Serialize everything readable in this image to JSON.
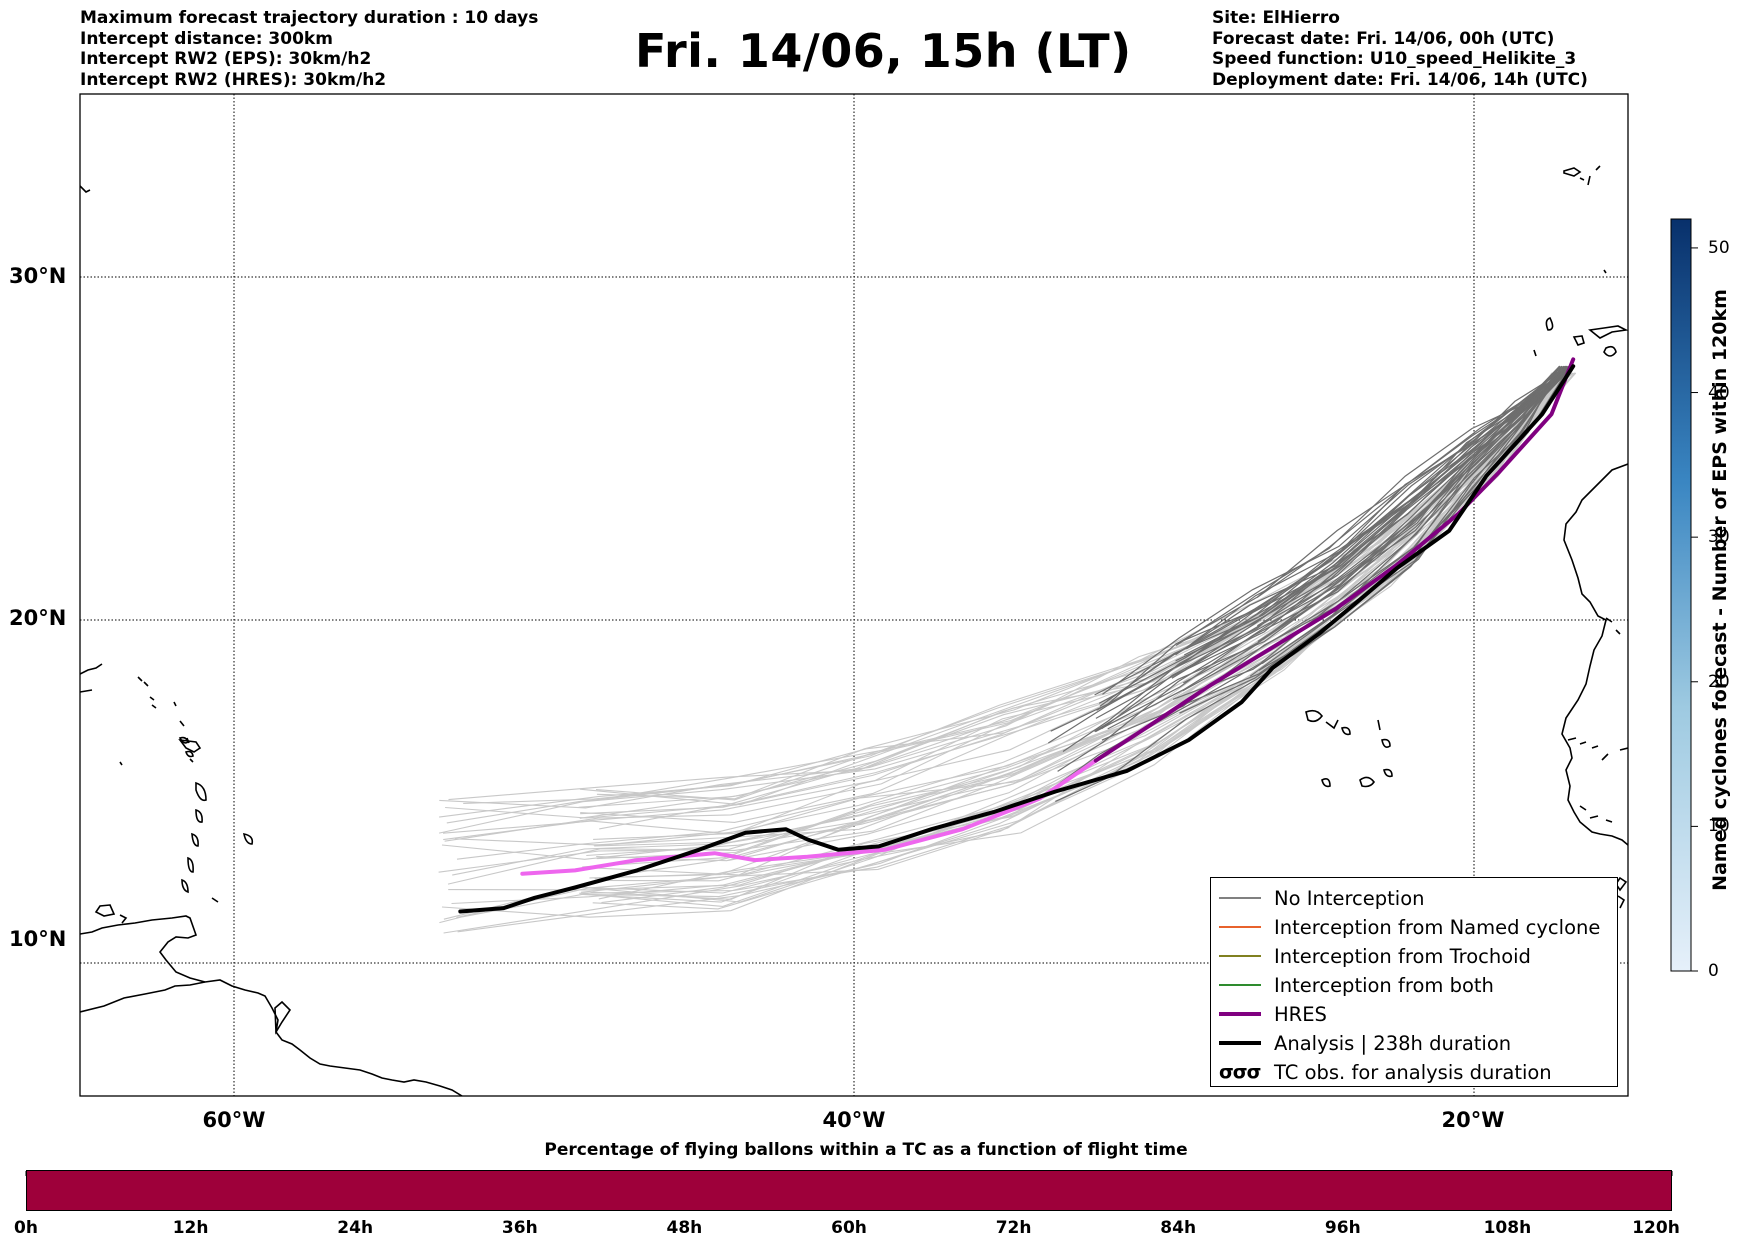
{
  "header": {
    "left_lines": [
      "Maximum forecast trajectory duration : 10 days",
      "Intercept distance: 300km",
      "Intercept RW2 (EPS):  30km/h2",
      "Intercept RW2 (HRES): 30km/h2"
    ],
    "title": "Fri. 14/06, 15h (LT)",
    "right_lines": [
      "Site: ElHierro",
      "Forecast date: Fri. 14/06, 00h (UTC)",
      "Speed function: U10_speed_Helikite_3",
      "Deployment date: Fri. 14/06, 14h (UTC)"
    ]
  },
  "map": {
    "lon_range": [
      -65,
      15
    ],
    "lat_range": [
      5.5,
      34.8
    ],
    "lat_labels": [
      "30°N",
      "20°N",
      "10°N"
    ],
    "lat_values": [
      30,
      20,
      10
    ],
    "lon_labels": [
      "60°W",
      "40°W",
      "20°W"
    ],
    "lon_values": [
      -60,
      -40,
      -20
    ],
    "grid_style": "dotted",
    "hres_track": [
      [
        -50.7,
        12.6
      ],
      [
        -49,
        12.7
      ],
      [
        -47,
        13.0
      ],
      [
        -44.5,
        13.2
      ],
      [
        -43.2,
        13.0
      ],
      [
        -41.5,
        13.1
      ],
      [
        -39,
        13.3
      ],
      [
        -36.5,
        13.9
      ],
      [
        -34,
        14.8
      ],
      [
        -32.2,
        15.9
      ],
      [
        -30.5,
        16.9
      ],
      [
        -28.5,
        18.1
      ],
      [
        -26.5,
        19.2
      ],
      [
        -24.5,
        20.3
      ],
      [
        -22.5,
        21.6
      ],
      [
        -20.5,
        23.1
      ],
      [
        -19.2,
        24.3
      ],
      [
        -17.5,
        26.0
      ],
      [
        -16.8,
        27.6
      ]
    ],
    "hres_highlight_until_lon": -31.8,
    "analysis_track": [
      [
        -52.7,
        11.5
      ],
      [
        -51.3,
        11.6
      ],
      [
        -50.3,
        11.9
      ],
      [
        -49,
        12.2
      ],
      [
        -47,
        12.7
      ],
      [
        -45,
        13.3
      ],
      [
        -43.5,
        13.8
      ],
      [
        -42.2,
        13.9
      ],
      [
        -41.5,
        13.6
      ],
      [
        -40.5,
        13.3
      ],
      [
        -39.2,
        13.4
      ],
      [
        -37.5,
        13.9
      ],
      [
        -35.5,
        14.4
      ],
      [
        -33.5,
        15.0
      ],
      [
        -31.2,
        15.6
      ],
      [
        -29.2,
        16.5
      ],
      [
        -27.5,
        17.6
      ],
      [
        -26.5,
        18.6
      ],
      [
        -25,
        19.6
      ],
      [
        -23.8,
        20.5
      ],
      [
        -22.5,
        21.5
      ],
      [
        -20.8,
        22.6
      ],
      [
        -19.6,
        24.2
      ],
      [
        -17.8,
        26.0
      ],
      [
        -16.8,
        27.4
      ]
    ],
    "ensemble_colors": {
      "early": "#c8c8c8",
      "late": "#6e6e6e",
      "hres": "#800080",
      "hres_light": "#ee66ee",
      "analysis": "#000000"
    }
  },
  "legend": {
    "items": [
      {
        "label": "No Interception",
        "color": "#808080",
        "style": "thin"
      },
      {
        "label": "Interception from Named cyclone",
        "color": "#e8622c",
        "style": "thin"
      },
      {
        "label": "Interception from Trochoid",
        "color": "#808020",
        "style": "thin"
      },
      {
        "label": "Interception from both",
        "color": "#2e8b2e",
        "style": "thin"
      },
      {
        "label": "HRES",
        "color": "#800080",
        "style": "thick"
      },
      {
        "label": "Analysis | 238h duration",
        "color": "#000000",
        "style": "thick"
      },
      {
        "label": "TC obs. for analysis duration",
        "color": "#000000",
        "style": "symbol",
        "symbol": "σσσ"
      }
    ]
  },
  "colorbar": {
    "title": "Named cyclones forecast - Number of EPS within 120km",
    "ticks": [
      "50",
      "40",
      "30",
      "20",
      "10",
      "0"
    ],
    "tick_values": [
      50,
      40,
      30,
      20,
      10,
      0
    ],
    "range": [
      0,
      52
    ]
  },
  "time_bar": {
    "title": "Percentage of flying ballons within a TC as a function of flight time",
    "ticks": [
      "0h",
      "12h",
      "24h",
      "36h",
      "48h",
      "60h",
      "72h",
      "84h",
      "96h",
      "108h",
      "120h"
    ],
    "fill_color": "#9e003a"
  }
}
